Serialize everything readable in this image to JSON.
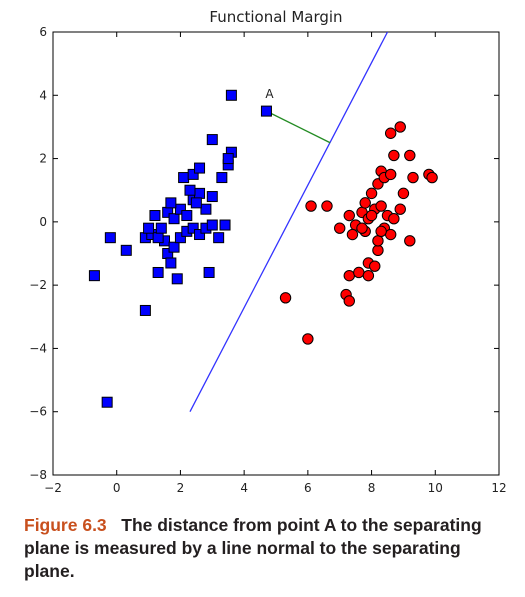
{
  "chart_data": {
    "type": "scatter",
    "title": "Functional Margin",
    "xlabel": "",
    "ylabel": "",
    "xlim": [
      -2,
      12
    ],
    "ylim": [
      -8,
      6
    ],
    "xticks": [
      -2,
      0,
      2,
      4,
      6,
      8,
      10,
      12
    ],
    "yticks": [
      -8,
      -6,
      -4,
      -2,
      0,
      2,
      4,
      6
    ],
    "grid": false,
    "series": [
      {
        "marker": "square",
        "color": "#0000ff",
        "points": [
          [
            3.6,
            4.0
          ],
          [
            -0.3,
            -5.7
          ],
          [
            -0.7,
            -1.7
          ],
          [
            0.9,
            -2.8
          ],
          [
            -0.2,
            -0.5
          ],
          [
            0.3,
            -0.9
          ],
          [
            1.3,
            -1.6
          ],
          [
            1.5,
            -0.6
          ],
          [
            1.9,
            -1.8
          ],
          [
            2.9,
            -1.6
          ],
          [
            0.9,
            -0.5
          ],
          [
            1.1,
            -0.4
          ],
          [
            1.3,
            -0.5
          ],
          [
            1.6,
            -1.0
          ],
          [
            1.7,
            -1.3
          ],
          [
            1.8,
            -0.8
          ],
          [
            2.0,
            -0.5
          ],
          [
            2.2,
            -0.3
          ],
          [
            2.4,
            -0.2
          ],
          [
            2.6,
            -0.4
          ],
          [
            2.8,
            -0.2
          ],
          [
            3.0,
            -0.1
          ],
          [
            3.2,
            -0.5
          ],
          [
            3.4,
            -0.1
          ],
          [
            1.0,
            -0.2
          ],
          [
            1.2,
            0.2
          ],
          [
            1.4,
            -0.2
          ],
          [
            1.6,
            0.3
          ],
          [
            1.8,
            0.1
          ],
          [
            2.0,
            0.4
          ],
          [
            2.2,
            0.2
          ],
          [
            2.4,
            0.7
          ],
          [
            2.6,
            0.9
          ],
          [
            2.8,
            0.4
          ],
          [
            3.0,
            0.8
          ],
          [
            1.7,
            0.6
          ],
          [
            2.3,
            1.0
          ],
          [
            2.5,
            0.6
          ],
          [
            3.3,
            1.4
          ],
          [
            3.5,
            1.8
          ],
          [
            3.6,
            2.2
          ],
          [
            3.0,
            2.6
          ],
          [
            2.1,
            1.4
          ],
          [
            2.4,
            1.5
          ],
          [
            2.6,
            1.7
          ],
          [
            3.5,
            2.0
          ],
          [
            4.7,
            3.5
          ]
        ]
      },
      {
        "marker": "circle",
        "color": "#ff0000",
        "points": [
          [
            5.3,
            -2.4
          ],
          [
            6.0,
            -3.7
          ],
          [
            7.2,
            -2.3
          ],
          [
            7.3,
            -2.5
          ],
          [
            7.3,
            -1.7
          ],
          [
            7.6,
            -1.6
          ],
          [
            7.9,
            -1.7
          ],
          [
            7.9,
            -1.3
          ],
          [
            8.1,
            -1.4
          ],
          [
            8.2,
            -0.9
          ],
          [
            8.2,
            -0.6
          ],
          [
            8.4,
            -0.2
          ],
          [
            8.6,
            -0.4
          ],
          [
            9.2,
            -0.6
          ],
          [
            7.0,
            -0.2
          ],
          [
            7.3,
            0.2
          ],
          [
            7.5,
            -0.1
          ],
          [
            7.7,
            0.3
          ],
          [
            7.9,
            0.1
          ],
          [
            8.1,
            0.4
          ],
          [
            8.3,
            0.5
          ],
          [
            8.5,
            0.2
          ],
          [
            8.7,
            0.1
          ],
          [
            8.9,
            0.4
          ],
          [
            9.0,
            0.9
          ],
          [
            8.0,
            0.9
          ],
          [
            8.2,
            1.2
          ],
          [
            8.3,
            1.6
          ],
          [
            8.4,
            1.4
          ],
          [
            8.6,
            1.5
          ],
          [
            8.7,
            2.1
          ],
          [
            8.6,
            2.8
          ],
          [
            8.9,
            3.0
          ],
          [
            9.2,
            2.1
          ],
          [
            9.3,
            1.4
          ],
          [
            9.8,
            1.5
          ],
          [
            9.9,
            1.4
          ],
          [
            6.1,
            0.5
          ],
          [
            6.6,
            0.5
          ],
          [
            7.8,
            0.6
          ],
          [
            8.0,
            0.2
          ],
          [
            7.4,
            -0.4
          ],
          [
            7.8,
            -0.3
          ],
          [
            8.3,
            -0.3
          ],
          [
            7.7,
            -0.2
          ]
        ]
      }
    ],
    "separating_line": {
      "color": "#3333ff",
      "from": [
        2.3,
        -6.0
      ],
      "to": [
        8.5,
        6.0
      ]
    },
    "normal_segment": {
      "color": "#228b22",
      "from": [
        4.7,
        3.5
      ],
      "to": [
        6.7,
        2.5
      ]
    },
    "annotations": [
      {
        "text": "A",
        "x": 4.7,
        "y": 3.5
      }
    ]
  },
  "caption": {
    "figure_label": "Figure 6.3",
    "text": "The distance from point A to the separating plane is measured by a line normal to the separating plane."
  }
}
